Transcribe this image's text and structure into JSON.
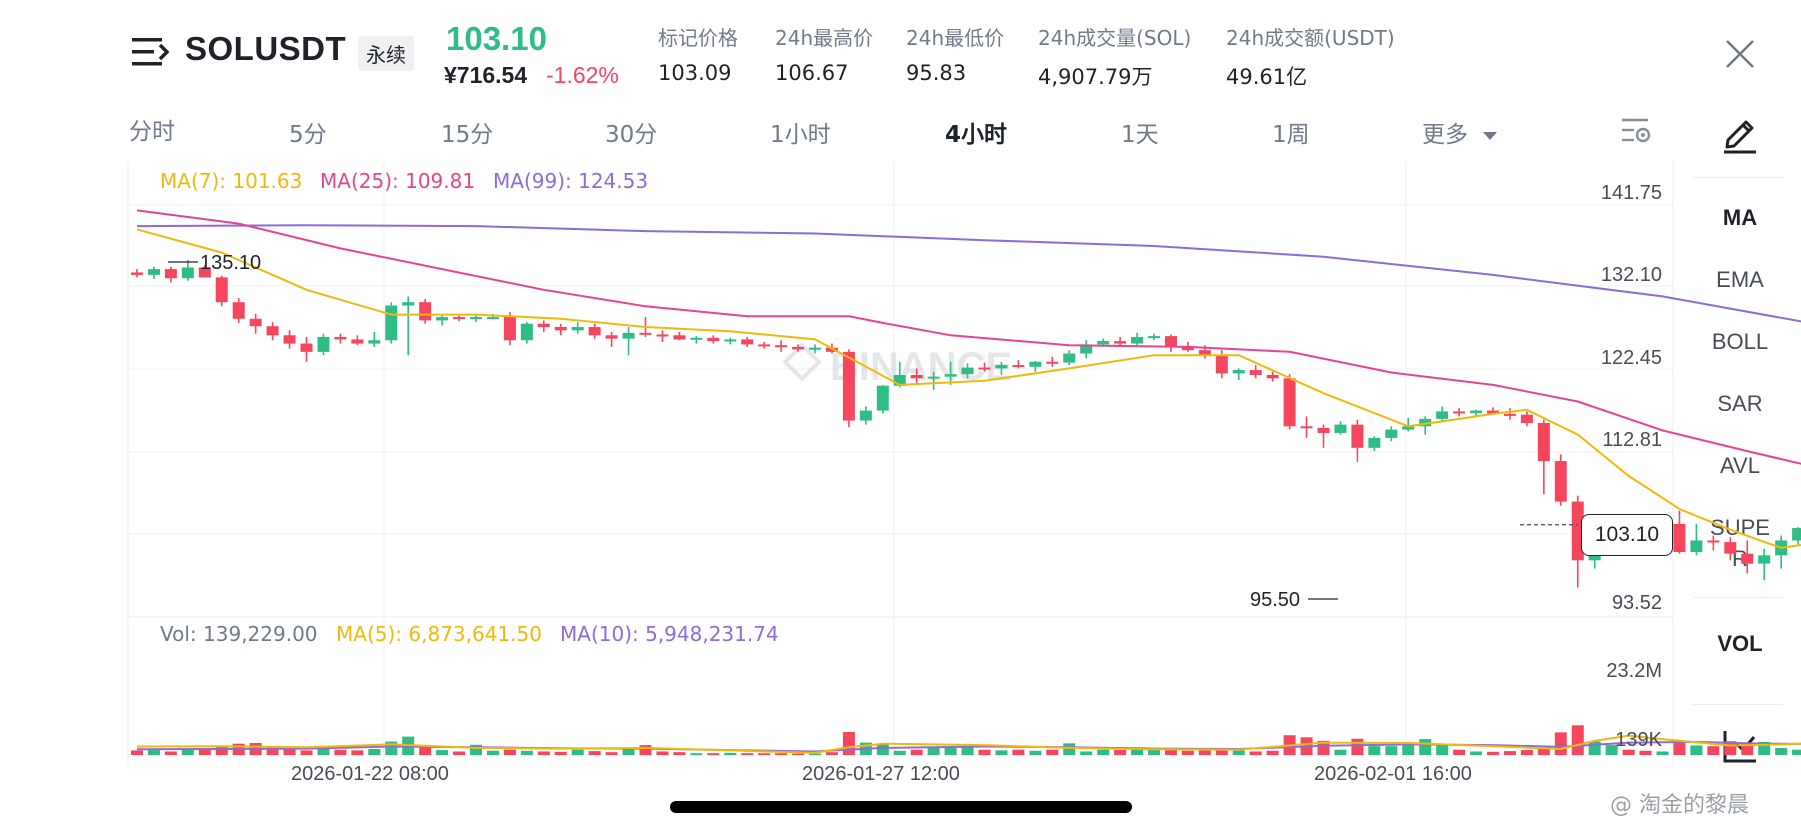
{
  "header": {
    "symbol": "SOLUSDT",
    "contract_type": "永续",
    "last_price": "103.10",
    "cny_price": "¥716.54",
    "change_pct": "-1.62%",
    "stats": [
      {
        "label": "标记价格",
        "value": "103.09"
      },
      {
        "label": "24h最高价",
        "value": "106.67"
      },
      {
        "label": "24h最低价",
        "value": "95.83"
      },
      {
        "label": "24h成交量(SOL)",
        "value": "4,907.79万"
      },
      {
        "label": "24h成交额(USDT)",
        "value": "49.61亿"
      }
    ]
  },
  "timeframes": [
    {
      "label": "分时",
      "active": false
    },
    {
      "label": "5分",
      "active": false
    },
    {
      "label": "15分",
      "active": false
    },
    {
      "label": "30分",
      "active": false
    },
    {
      "label": "1小时",
      "active": false
    },
    {
      "label": "4小时",
      "active": true
    },
    {
      "label": "1天",
      "active": false
    },
    {
      "label": "1周",
      "active": false
    },
    {
      "label": "更多",
      "active": false
    }
  ],
  "sidebar": {
    "indicators": [
      "MA",
      "EMA",
      "BOLL",
      "SAR",
      "AVL",
      "SUPER"
    ],
    "volume": "VOL"
  },
  "legend": {
    "ma7": "MA(7): 101.63",
    "ma25": "MA(25): 109.81",
    "ma99": "MA(99): 124.53",
    "vol": "Vol: 139,229.00",
    "vol_ma5": "MA(5): 6,873,641.50",
    "vol_ma10": "MA(10): 5,948,231.74"
  },
  "price_axis": [
    "141.75",
    "132.10",
    "122.45",
    "112.81",
    "93.52"
  ],
  "volume_axis": [
    "23.2M",
    "139K"
  ],
  "date_axis": [
    "2026-01-22 08:00",
    "2026-01-27 12:00",
    "2026-02-01 16:00"
  ],
  "annotations": {
    "high_label": "135.10",
    "low_label": "95.50"
  },
  "current_price_tag": "103.10",
  "chart_watermark": "BINANCE",
  "watermark": "@ 淘金的黎晨",
  "colors": {
    "up": "#2ebd85",
    "down": "#f6465d",
    "ma7": "#f0b90b",
    "ma25": "#e84393",
    "ma99": "#8e6bd8"
  },
  "chart_data": {
    "type": "candlestick",
    "interval": "4h",
    "price_range": [
      93.52,
      141.75
    ],
    "candles": [
      [
        133.6,
        134.0,
        133.0,
        133.3
      ],
      [
        133.3,
        134.3,
        132.8,
        134.0
      ],
      [
        134.0,
        134.3,
        132.4,
        132.9
      ],
      [
        132.9,
        135.1,
        132.6,
        134.2
      ],
      [
        134.2,
        134.5,
        133.0,
        133.0
      ],
      [
        133.0,
        133.2,
        129.5,
        130.0
      ],
      [
        130.0,
        130.5,
        127.5,
        128.0
      ],
      [
        128.0,
        128.6,
        126.2,
        127.1
      ],
      [
        127.1,
        127.6,
        125.4,
        126.0
      ],
      [
        126.0,
        126.6,
        124.4,
        125.0
      ],
      [
        125.0,
        125.8,
        122.8,
        124.0
      ],
      [
        124.0,
        126.2,
        123.6,
        125.8
      ],
      [
        125.8,
        126.2,
        125.0,
        125.5
      ],
      [
        125.5,
        126.0,
        124.8,
        125.0
      ],
      [
        125.0,
        126.4,
        124.6,
        125.4
      ],
      [
        125.4,
        130.0,
        125.0,
        129.6
      ],
      [
        129.6,
        130.7,
        123.6,
        130.0
      ],
      [
        130.0,
        130.4,
        127.4,
        127.8
      ],
      [
        127.8,
        128.4,
        127.2,
        128.2
      ],
      [
        128.2,
        128.6,
        127.7,
        128.0
      ],
      [
        128.0,
        128.4,
        127.6,
        128.2
      ],
      [
        128.2,
        128.6,
        127.9,
        128.2
      ],
      [
        128.2,
        128.8,
        124.8,
        125.4
      ],
      [
        125.4,
        127.6,
        125.0,
        127.4
      ],
      [
        127.4,
        127.8,
        126.4,
        127.0
      ],
      [
        127.0,
        127.4,
        126.0,
        126.6
      ],
      [
        126.6,
        127.6,
        126.2,
        127.0
      ],
      [
        127.0,
        127.4,
        125.6,
        126.0
      ],
      [
        126.0,
        126.4,
        124.6,
        125.6
      ],
      [
        125.6,
        127.0,
        123.6,
        126.3
      ],
      [
        126.3,
        128.2,
        125.8,
        126.1
      ],
      [
        126.1,
        126.6,
        125.2,
        126.0
      ],
      [
        126.0,
        126.4,
        125.4,
        125.5
      ],
      [
        125.5,
        125.9,
        125.0,
        125.7
      ],
      [
        125.7,
        126.0,
        125.0,
        125.3
      ],
      [
        125.3,
        125.7,
        124.9,
        125.5
      ],
      [
        125.5,
        125.8,
        124.6,
        124.9
      ],
      [
        124.9,
        125.2,
        124.4,
        124.8
      ],
      [
        124.8,
        125.4,
        124.0,
        124.6
      ],
      [
        124.6,
        124.9,
        124.0,
        124.3
      ],
      [
        124.3,
        124.9,
        123.8,
        124.5
      ],
      [
        124.5,
        125.0,
        123.8,
        124.0
      ],
      [
        124.0,
        124.3,
        114.9,
        115.7
      ],
      [
        115.7,
        117.4,
        115.2,
        116.9
      ],
      [
        116.9,
        120.0,
        116.6,
        119.9
      ],
      [
        119.9,
        122.8,
        119.7,
        121.2
      ],
      [
        121.2,
        122.0,
        120.2,
        120.8
      ],
      [
        120.8,
        121.6,
        119.4,
        121.0
      ],
      [
        121.0,
        122.8,
        120.0,
        121.3
      ],
      [
        121.3,
        122.6,
        120.8,
        122.1
      ],
      [
        122.1,
        122.7,
        121.6,
        122.0
      ],
      [
        122.0,
        122.8,
        121.2,
        122.4
      ],
      [
        122.4,
        123.0,
        122.0,
        122.2
      ],
      [
        122.2,
        122.9,
        121.6,
        122.8
      ],
      [
        122.8,
        123.4,
        122.2,
        122.7
      ],
      [
        122.7,
        124.2,
        122.4,
        123.8
      ],
      [
        123.8,
        125.4,
        123.2,
        124.9
      ],
      [
        124.9,
        125.6,
        124.6,
        125.3
      ],
      [
        125.3,
        125.8,
        124.8,
        125.0
      ],
      [
        125.0,
        126.3,
        124.8,
        125.8
      ],
      [
        125.8,
        126.2,
        125.4,
        125.9
      ],
      [
        125.9,
        126.1,
        124.0,
        124.6
      ],
      [
        124.6,
        125.2,
        124.0,
        124.2
      ],
      [
        124.2,
        124.8,
        123.2,
        123.6
      ],
      [
        123.6,
        124.2,
        120.8,
        121.4
      ],
      [
        121.4,
        122.0,
        120.6,
        121.8
      ],
      [
        121.8,
        122.4,
        120.8,
        121.2
      ],
      [
        121.2,
        121.6,
        120.4,
        120.8
      ],
      [
        120.8,
        121.3,
        114.6,
        115.0
      ],
      [
        115.0,
        116.2,
        113.6,
        114.8
      ],
      [
        114.8,
        115.2,
        112.4,
        114.2
      ],
      [
        114.2,
        115.6,
        114.0,
        115.2
      ],
      [
        115.2,
        115.8,
        110.7,
        112.4
      ],
      [
        112.4,
        113.8,
        112.0,
        113.6
      ],
      [
        113.6,
        115.0,
        113.2,
        114.6
      ],
      [
        114.6,
        116.0,
        114.4,
        115.0
      ],
      [
        115.0,
        116.2,
        114.0,
        115.9
      ],
      [
        115.9,
        117.4,
        115.6,
        116.8
      ],
      [
        116.8,
        117.2,
        116.2,
        116.6
      ],
      [
        116.6,
        117.0,
        116.2,
        116.9
      ],
      [
        116.9,
        117.3,
        116.4,
        116.5
      ],
      [
        116.5,
        117.2,
        115.8,
        116.4
      ],
      [
        116.4,
        116.8,
        115.0,
        115.4
      ],
      [
        115.4,
        115.8,
        106.8,
        110.8
      ],
      [
        110.8,
        111.6,
        105.4,
        105.9
      ],
      [
        105.9,
        106.6,
        95.5,
        98.8
      ],
      [
        98.8,
        103.6,
        97.8,
        103.0
      ],
      [
        103.0,
        104.2,
        102.0,
        103.8
      ],
      [
        103.8,
        104.4,
        102.6,
        103.2
      ],
      [
        103.2,
        103.8,
        102.4,
        103.0
      ],
      [
        103.0,
        104.0,
        101.6,
        103.2
      ],
      [
        103.2,
        104.8,
        99.6,
        99.8
      ],
      [
        99.8,
        103.2,
        99.4,
        101.2
      ],
      [
        101.2,
        101.8,
        100.0,
        101.0
      ],
      [
        101.0,
        101.6,
        98.8,
        99.6
      ],
      [
        99.6,
        101.2,
        97.2,
        98.4
      ],
      [
        98.4,
        100.2,
        96.4,
        99.4
      ],
      [
        99.4,
        101.8,
        97.8,
        101.2
      ],
      [
        101.2,
        102.8,
        100.6,
        102.7
      ],
      [
        102.7,
        103.4,
        102.4,
        103.1
      ]
    ],
    "volume": [
      1.3,
      1.4,
      1.0,
      1.5,
      1.6,
      2.6,
      3.2,
      3.4,
      2.4,
      1.6,
      1.3,
      2.2,
      1.5,
      1.3,
      1.7,
      3.8,
      5.2,
      2.8,
      1.4,
      1.0,
      2.9,
      1.2,
      1.5,
      1.2,
      1.0,
      0.9,
      1.5,
      1.1,
      0.8,
      2.2,
      2.8,
      1.0,
      0.8,
      0.5,
      0.5,
      0.6,
      0.5,
      0.5,
      0.5,
      0.4,
      0.4,
      0.8,
      6.5,
      3.5,
      3.0,
      1.2,
      1.5,
      2.0,
      2.3,
      2.2,
      1.5,
      1.3,
      1.5,
      1.2,
      1.5,
      3.3,
      1.0,
      1.5,
      1.4,
      1.6,
      1.8,
      1.8,
      1.2,
      1.5,
      1.4,
      1.3,
      1.0,
      1.2,
      5.6,
      5.0,
      4.0,
      1.5,
      4.6,
      2.5,
      2.5,
      3.2,
      4.5,
      2.7,
      1.5,
      1.0,
      0.9,
      1.1,
      1.4,
      2.0,
      6.4,
      8.4,
      3.8,
      2.8,
      1.5,
      1.2,
      1.0,
      3.5,
      2.7,
      2.5,
      3.9,
      3.2,
      3.7,
      2.0,
      1.5,
      1.4
    ],
    "volume_range": [
      0,
      23.2
    ],
    "ma7": [
      [
        0,
        138.8
      ],
      [
        5,
        136.0
      ],
      [
        10,
        131.5
      ],
      [
        15,
        128.5
      ],
      [
        20,
        128.5
      ],
      [
        25,
        128.0
      ],
      [
        30,
        127.0
      ],
      [
        35,
        126.5
      ],
      [
        40,
        125.5
      ],
      [
        45,
        120.0
      ],
      [
        50,
        120.5
      ],
      [
        55,
        122.0
      ],
      [
        60,
        123.6
      ],
      [
        65,
        123.6
      ],
      [
        70,
        119.0
      ],
      [
        75,
        115.0
      ],
      [
        80,
        116.5
      ],
      [
        82,
        117.0
      ],
      [
        85,
        114.0
      ],
      [
        88,
        109.0
      ],
      [
        91,
        105.0
      ],
      [
        94,
        102.5
      ],
      [
        97,
        100.3
      ],
      [
        100,
        101.2
      ],
      [
        104,
        101.0
      ]
    ],
    "ma25": [
      [
        0,
        141.1
      ],
      [
        6,
        139.5
      ],
      [
        12,
        136.5
      ],
      [
        18,
        134.0
      ],
      [
        24,
        131.5
      ],
      [
        30,
        129.5
      ],
      [
        36,
        128.3
      ],
      [
        42,
        128.3
      ],
      [
        44,
        127.5
      ],
      [
        48,
        126.0
      ],
      [
        55,
        124.8
      ],
      [
        62,
        124.6
      ],
      [
        68,
        124.0
      ],
      [
        74,
        121.5
      ],
      [
        80,
        120.0
      ],
      [
        85,
        118.0
      ],
      [
        90,
        114.5
      ],
      [
        95,
        112.0
      ],
      [
        100,
        109.6
      ],
      [
        104,
        108.3
      ]
    ],
    "ma99": [
      [
        0,
        139.2
      ],
      [
        10,
        139.3
      ],
      [
        20,
        139.2
      ],
      [
        30,
        138.6
      ],
      [
        40,
        138.3
      ],
      [
        50,
        137.5
      ],
      [
        60,
        136.8
      ],
      [
        70,
        135.5
      ],
      [
        80,
        133.3
      ],
      [
        90,
        130.7
      ],
      [
        100,
        127.0
      ],
      [
        104,
        125.3
      ]
    ],
    "vol_ma5": [
      [
        0,
        2.4
      ],
      [
        5,
        2.5
      ],
      [
        10,
        2.2
      ],
      [
        15,
        3.0
      ],
      [
        20,
        2.0
      ],
      [
        25,
        1.8
      ],
      [
        30,
        2.0
      ],
      [
        35,
        1.3
      ],
      [
        40,
        0.6
      ],
      [
        42,
        2.2
      ],
      [
        44,
        3.2
      ],
      [
        50,
        2.8
      ],
      [
        55,
        2.0
      ],
      [
        60,
        1.6
      ],
      [
        65,
        1.5
      ],
      [
        70,
        3.5
      ],
      [
        75,
        3.4
      ],
      [
        80,
        2.5
      ],
      [
        84,
        1.7
      ],
      [
        86,
        4.0
      ],
      [
        88,
        5.5
      ],
      [
        90,
        4.5
      ],
      [
        94,
        2.7
      ],
      [
        97,
        3.0
      ],
      [
        100,
        3.6
      ],
      [
        104,
        3.0
      ]
    ],
    "vol_ma10": [
      [
        0,
        1.6
      ],
      [
        10,
        1.8
      ],
      [
        15,
        2.4
      ],
      [
        20,
        2.2
      ],
      [
        25,
        1.9
      ],
      [
        30,
        1.8
      ],
      [
        35,
        1.4
      ],
      [
        40,
        1.0
      ],
      [
        44,
        2.0
      ],
      [
        50,
        2.4
      ],
      [
        55,
        2.2
      ],
      [
        60,
        1.8
      ],
      [
        65,
        1.7
      ],
      [
        70,
        2.6
      ],
      [
        75,
        3.0
      ],
      [
        80,
        2.8
      ],
      [
        84,
        2.3
      ],
      [
        88,
        3.5
      ],
      [
        92,
        3.7
      ],
      [
        96,
        3.2
      ],
      [
        100,
        3.1
      ],
      [
        104,
        3.2
      ]
    ]
  }
}
